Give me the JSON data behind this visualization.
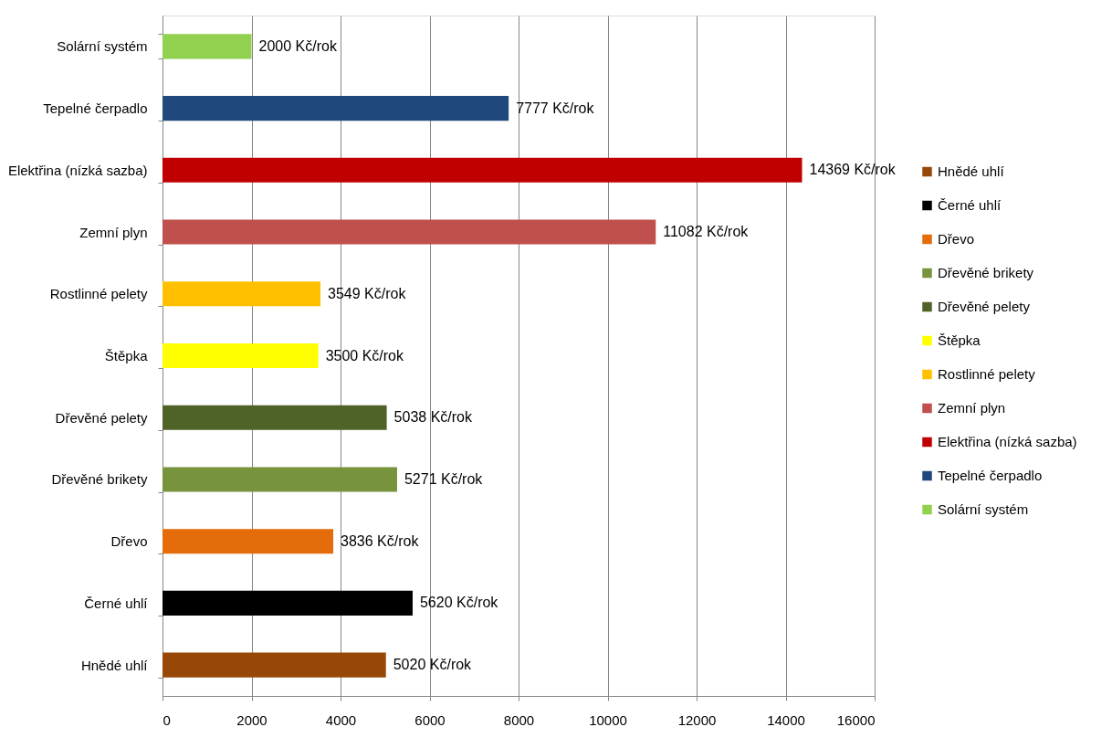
{
  "chart_data": {
    "type": "bar",
    "orientation": "horizontal",
    "stacked": true,
    "categories": [
      "Solární systém",
      "Tepelné čerpadlo",
      "Elektřina (nízká sazba)",
      "Zemní plyn",
      "Rostlinné pelety",
      "Štěpka",
      "Dřevěné pelety",
      "Dřevěné brikety",
      "Dřevo",
      "Černé uhlí",
      "Hnědé uhlí"
    ],
    "series": [
      {
        "name": "Hnědé uhlí",
        "color": "#974806",
        "values": [
          null,
          null,
          null,
          null,
          null,
          null,
          null,
          null,
          null,
          null,
          5020
        ],
        "value_labels": [
          null,
          null,
          null,
          null,
          null,
          null,
          null,
          null,
          null,
          null,
          "5020 Kč/rok"
        ]
      },
      {
        "name": "Černé uhlí",
        "color": "#000000",
        "values": [
          null,
          null,
          null,
          null,
          null,
          null,
          null,
          null,
          null,
          5620,
          null
        ],
        "value_labels": [
          null,
          null,
          null,
          null,
          null,
          null,
          null,
          null,
          null,
          "5620 Kč/rok",
          null
        ]
      },
      {
        "name": "Dřevo",
        "color": "#e46c0a",
        "values": [
          null,
          null,
          null,
          null,
          null,
          null,
          null,
          null,
          3836,
          null,
          null
        ],
        "value_labels": [
          null,
          null,
          null,
          null,
          null,
          null,
          null,
          null,
          "3836 Kč/rok",
          null,
          null
        ]
      },
      {
        "name": "Dřevěné brikety",
        "color": "#77933c",
        "values": [
          null,
          null,
          null,
          null,
          null,
          null,
          null,
          5271,
          null,
          null,
          null
        ],
        "value_labels": [
          null,
          null,
          null,
          null,
          null,
          null,
          null,
          "5271 Kč/rok",
          null,
          null,
          null
        ]
      },
      {
        "name": "Dřevěné pelety",
        "color": "#4f6228",
        "values": [
          null,
          null,
          null,
          null,
          null,
          null,
          5038,
          null,
          null,
          null,
          null
        ],
        "value_labels": [
          null,
          null,
          null,
          null,
          null,
          null,
          "5038 Kč/rok",
          null,
          null,
          null,
          null
        ]
      },
      {
        "name": "Štěpka",
        "color": "#ffff00",
        "values": [
          null,
          null,
          null,
          null,
          null,
          3500,
          null,
          null,
          null,
          null,
          null
        ],
        "value_labels": [
          null,
          null,
          null,
          null,
          null,
          "3500 Kč/rok",
          null,
          null,
          null,
          null,
          null
        ]
      },
      {
        "name": "Rostlinné pelety",
        "color": "#ffc000",
        "values": [
          null,
          null,
          null,
          null,
          3549,
          null,
          null,
          null,
          null,
          null,
          null
        ],
        "value_labels": [
          null,
          null,
          null,
          null,
          "3549 Kč/rok",
          null,
          null,
          null,
          null,
          null,
          null
        ]
      },
      {
        "name": "Zemní plyn",
        "color": "#c0504d",
        "values": [
          null,
          null,
          null,
          11082,
          null,
          null,
          null,
          null,
          null,
          null,
          null
        ],
        "value_labels": [
          null,
          null,
          null,
          "11082 Kč/rok",
          null,
          null,
          null,
          null,
          null,
          null,
          null
        ]
      },
      {
        "name": "Elektřina (nízká sazba)",
        "color": "#c00000",
        "values": [
          null,
          null,
          14369,
          null,
          null,
          null,
          null,
          null,
          null,
          null,
          null
        ],
        "value_labels": [
          null,
          null,
          "14369 Kč/rok",
          null,
          null,
          null,
          null,
          null,
          null,
          null,
          null
        ]
      },
      {
        "name": "Tepelné čerpadlo",
        "color": "#1f497d",
        "values": [
          null,
          7777,
          null,
          null,
          null,
          null,
          null,
          null,
          null,
          null,
          null
        ],
        "value_labels": [
          null,
          "7777 Kč/rok",
          null,
          null,
          null,
          null,
          null,
          null,
          null,
          null,
          null
        ]
      },
      {
        "name": "Solární systém",
        "color": "#92d050",
        "values": [
          2000,
          null,
          null,
          null,
          null,
          null,
          null,
          null,
          null,
          null,
          null
        ],
        "value_labels": [
          "2000 Kč/rok",
          null,
          null,
          null,
          null,
          null,
          null,
          null,
          null,
          null,
          null
        ]
      }
    ],
    "xlim": [
      0,
      16000
    ],
    "xticks": [
      0,
      2000,
      4000,
      6000,
      8000,
      10000,
      12000,
      14000,
      16000
    ],
    "grid": "x",
    "legend": "right"
  }
}
